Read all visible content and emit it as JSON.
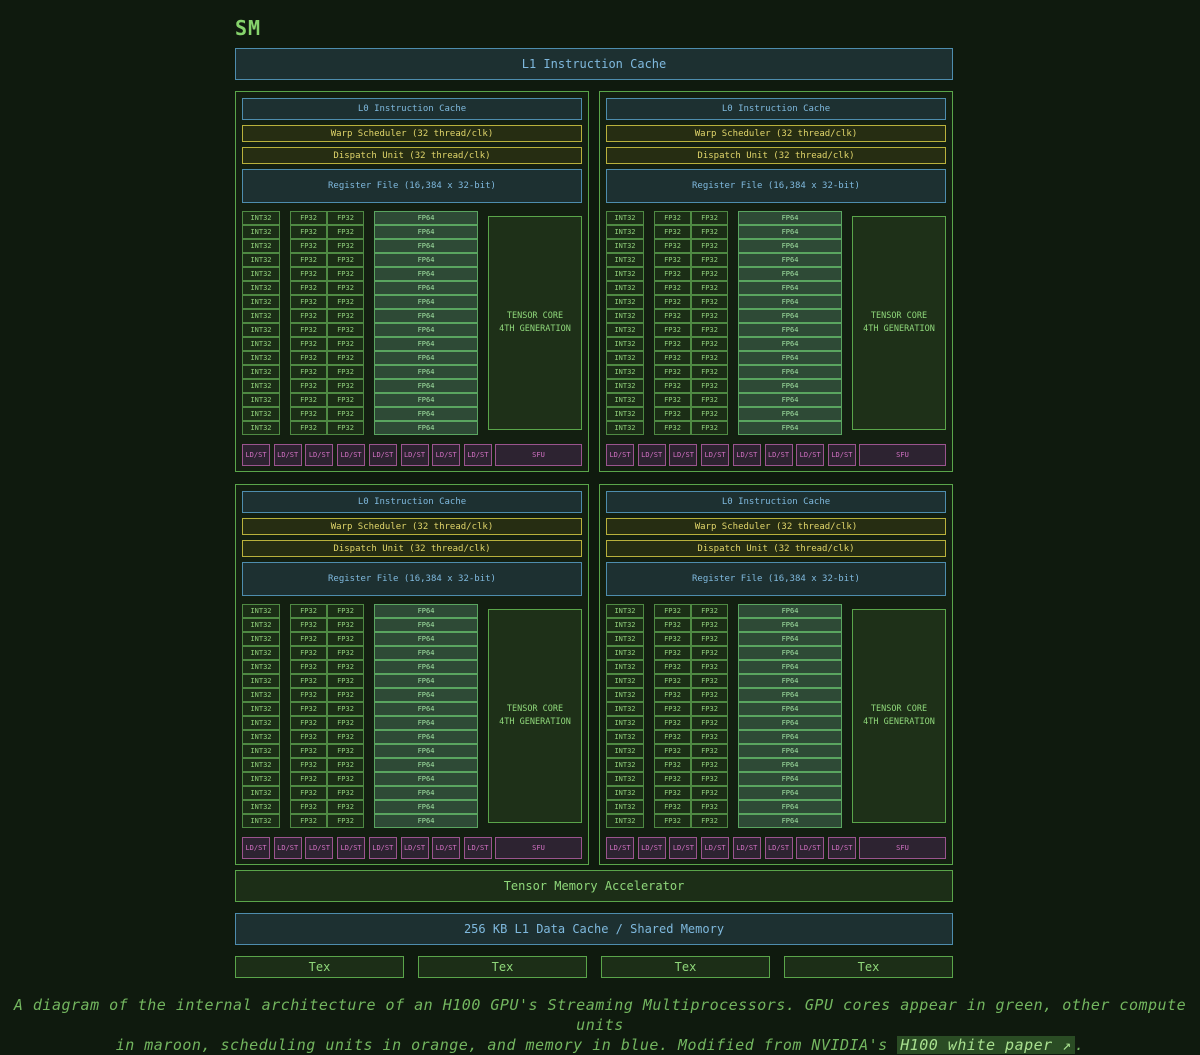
{
  "title": "SM",
  "l1_instruction_cache": "L1 Instruction Cache",
  "partition": {
    "l0_cache": "L0 Instruction Cache",
    "warp_scheduler": "Warp Scheduler (32 thread/clk)",
    "dispatch_unit": "Dispatch Unit (32 thread/clk)",
    "register_file": "Register File (16,384 x 32-bit)",
    "int32_label": "INT32",
    "fp32_label": "FP32",
    "fp64_label": "FP64",
    "tensor_core_line1": "TENSOR CORE",
    "tensor_core_line2": "4TH GENERATION",
    "ldst_line1": "LD/",
    "ldst_line2": "ST",
    "sfu_label": "SFU",
    "rows": 16,
    "ldst_units": 8
  },
  "tensor_memory_accelerator": "Tensor Memory Accelerator",
  "l1_data_cache": "256 KB L1 Data Cache / Shared Memory",
  "tex_labels": [
    "Tex",
    "Tex",
    "Tex",
    "Tex"
  ],
  "caption": {
    "text_line1": "A diagram of the internal architecture of an H100 GPU's Streaming Multiprocessors. GPU cores appear in green, other compute units",
    "text_line2": "in maroon, scheduling units in orange, and memory in blue. Modified from NVIDIA's",
    "link_text": "H100 white paper ↗",
    "end": "."
  },
  "colors": {
    "background": "#0f1a0e",
    "core_green": "#5aa54a",
    "maroon": "#9a548e",
    "orange": "#b9b13c",
    "memory_blue": "#4e8dae"
  }
}
